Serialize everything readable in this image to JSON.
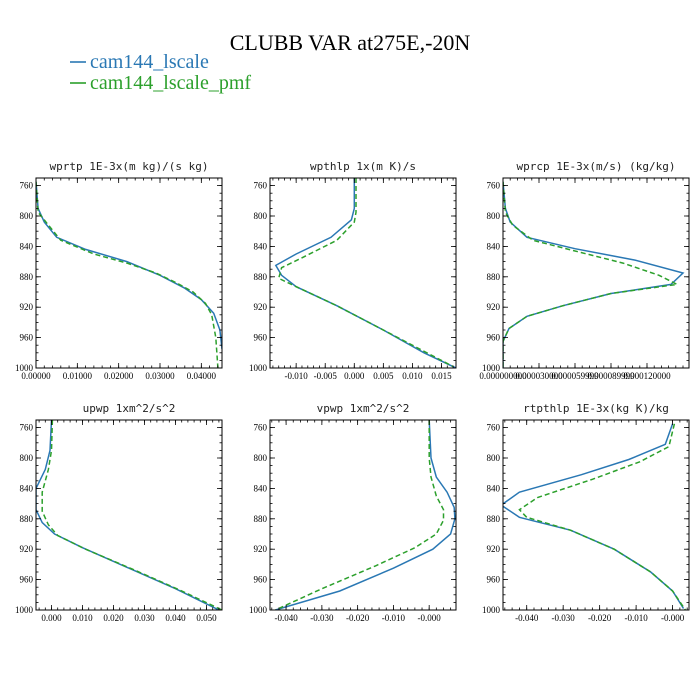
{
  "title": "CLUBB VAR at275E,-20N",
  "colors": {
    "series1": "#2a78b4",
    "series2": "#2ca02c"
  },
  "legend": [
    {
      "name": "cam144_lscale",
      "color": "#2a78b4",
      "dash": "solid"
    },
    {
      "name": "cam144_lscale_pmf",
      "color": "#2ca02c",
      "dash": "dashed"
    }
  ],
  "chart_data": [
    {
      "type": "line",
      "title": "wprtp  1E-3x(m kg)/(s kg)",
      "xlim": [
        0,
        0.045
      ],
      "ylim": [
        1000,
        750
      ],
      "xticks": [
        "0.00000",
        "0.01000",
        "0.02000",
        "0.03000",
        "0.04000"
      ],
      "xtick_values": [
        0,
        0.01,
        0.02,
        0.03,
        0.04
      ],
      "yticks": [
        "760",
        "800",
        "840",
        "880",
        "920",
        "960",
        "1000"
      ],
      "ytick_values": [
        760,
        800,
        840,
        880,
        920,
        960,
        1000
      ],
      "series": [
        {
          "name": "cam144_lscale",
          "x": [
            0,
            0.0005,
            0.002,
            0.005,
            0.012,
            0.022,
            0.03,
            0.036,
            0.04,
            0.043,
            0.0445,
            0.045
          ],
          "y": [
            755,
            790,
            808,
            828,
            844,
            860,
            878,
            895,
            910,
            928,
            950,
            975
          ]
        },
        {
          "name": "cam144_lscale_pmf",
          "x": [
            0,
            0.0005,
            0.003,
            0.006,
            0.014,
            0.022,
            0.029,
            0.034,
            0.038,
            0.041,
            0.0425,
            0.0435,
            0.044
          ],
          "y": [
            755,
            795,
            812,
            832,
            850,
            862,
            875,
            888,
            900,
            915,
            930,
            960,
            1000
          ]
        }
      ]
    },
    {
      "type": "line",
      "title": "wpthlp  1x(m K)/s",
      "xlim": [
        -0.0145,
        0.0175
      ],
      "ylim": [
        1000,
        750
      ],
      "xticks": [
        "-0.010",
        "-0.005",
        "0.000",
        "0.005",
        "0.010",
        "0.015"
      ],
      "xtick_values": [
        -0.01,
        -0.005,
        0,
        0.005,
        0.01,
        0.015
      ],
      "yticks": [
        "760",
        "800",
        "840",
        "880",
        "920",
        "960",
        "1000"
      ],
      "ytick_values": [
        760,
        800,
        840,
        880,
        920,
        960,
        1000
      ],
      "series": [
        {
          "name": "cam144_lscale",
          "x": [
            0,
            0,
            -0.0005,
            -0.004,
            -0.01,
            -0.0135,
            -0.0125,
            -0.01,
            -0.003,
            0.005,
            0.012,
            0.0175
          ],
          "y": [
            750,
            790,
            805,
            828,
            850,
            865,
            878,
            893,
            918,
            950,
            980,
            1000
          ]
        },
        {
          "name": "cam144_lscale_pmf",
          "x": [
            0.0003,
            0.0003,
            0,
            -0.003,
            -0.009,
            -0.0125,
            -0.013,
            -0.01,
            -0.003,
            0.005,
            0.012,
            0.017
          ],
          "y": [
            750,
            795,
            808,
            832,
            855,
            868,
            882,
            893,
            918,
            950,
            978,
            998
          ]
        }
      ]
    },
    {
      "type": "line",
      "title": "wprcp  1E-3x(m/s) (kg/kg)",
      "xlim": [
        0,
        0.000155
      ],
      "ylim": [
        1000,
        750
      ],
      "xticks": [
        "0.000000000",
        "0.000030000",
        "0.000059999",
        "0.000089999",
        "0.000120000"
      ],
      "xtick_values": [
        0,
        3e-05,
        6e-05,
        9e-05,
        0.00012
      ],
      "yticks": [
        "760",
        "800",
        "840",
        "880",
        "920",
        "960",
        "1000"
      ],
      "ytick_values": [
        760,
        800,
        840,
        880,
        920,
        960,
        1000
      ],
      "series": [
        {
          "name": "cam144_lscale",
          "x": [
            0,
            2e-06,
            6e-06,
            2e-05,
            6e-05,
            0.00011,
            0.00015,
            0.00014,
            9e-05,
            5e-05,
            2e-05,
            5e-06,
            0,
            0
          ],
          "y": [
            755,
            790,
            808,
            828,
            843,
            858,
            875,
            890,
            902,
            918,
            932,
            948,
            965,
            1000
          ]
        },
        {
          "name": "cam144_lscale_pmf",
          "x": [
            0,
            2e-06,
            8e-06,
            2.5e-05,
            6.5e-05,
            0.0001,
            0.00013,
            0.000145,
            9e-05,
            5e-05,
            2e-05,
            5e-06,
            0,
            0
          ],
          "y": [
            755,
            795,
            812,
            832,
            848,
            862,
            878,
            890,
            902,
            918,
            932,
            948,
            965,
            1000
          ]
        }
      ]
    },
    {
      "type": "line",
      "title": "upwp  1xm^2/s^2",
      "xlim": [
        -0.005,
        0.055
      ],
      "ylim": [
        1000,
        750
      ],
      "xticks": [
        "0.000",
        "0.010",
        "0.020",
        "0.030",
        "0.040",
        "0.050"
      ],
      "xtick_values": [
        0,
        0.01,
        0.02,
        0.03,
        0.04,
        0.05
      ],
      "yticks": [
        "760",
        "800",
        "840",
        "880",
        "920",
        "960",
        "1000"
      ],
      "ytick_values": [
        760,
        800,
        840,
        880,
        920,
        960,
        1000
      ],
      "series": [
        {
          "name": "cam144_lscale",
          "x": [
            0.0,
            -0.0005,
            -0.002,
            -0.005,
            -0.005,
            -0.003,
            0.001,
            0.01,
            0.025,
            0.04,
            0.054
          ],
          "y": [
            750,
            790,
            815,
            840,
            868,
            885,
            900,
            918,
            945,
            972,
            1000
          ]
        },
        {
          "name": "cam144_lscale_pmf",
          "x": [
            0.0003,
            0.0,
            -0.001,
            -0.003,
            -0.003,
            -0.001,
            0.002,
            0.011,
            0.026,
            0.041,
            0.055
          ],
          "y": [
            750,
            790,
            815,
            845,
            870,
            888,
            902,
            920,
            946,
            973,
            1000
          ]
        }
      ]
    },
    {
      "type": "line",
      "title": "vpwp  1xm^2/s^2",
      "xlim": [
        -0.0445,
        0.0075
      ],
      "ylim": [
        1000,
        750
      ],
      "xticks": [
        "-0.040",
        "-0.030",
        "-0.020",
        "-0.010",
        "-0.000"
      ],
      "xtick_values": [
        -0.04,
        -0.03,
        -0.02,
        -0.01,
        0
      ],
      "yticks": [
        "760",
        "800",
        "840",
        "880",
        "920",
        "960",
        "1000"
      ],
      "ytick_values": [
        760,
        800,
        840,
        880,
        920,
        960,
        1000
      ],
      "series": [
        {
          "name": "cam144_lscale",
          "x": [
            0,
            0.0005,
            0.002,
            0.005,
            0.007,
            0.0072,
            0.006,
            0.001,
            -0.01,
            -0.025,
            -0.043
          ],
          "y": [
            750,
            800,
            825,
            845,
            865,
            880,
            900,
            920,
            945,
            975,
            1000
          ]
        },
        {
          "name": "cam144_lscale_pmf",
          "x": [
            0,
            0,
            0.0005,
            0.002,
            0.004,
            0.004,
            0.002,
            -0.004,
            -0.015,
            -0.03,
            -0.043
          ],
          "y": [
            750,
            800,
            825,
            850,
            868,
            882,
            900,
            918,
            942,
            972,
            1000
          ]
        }
      ]
    },
    {
      "type": "line",
      "title": "rtpthlp  1E-3x(kg K)/kg",
      "xlim": [
        -0.0465,
        0.0045
      ],
      "ylim": [
        1000,
        750
      ],
      "xticks": [
        "-0.040",
        "-0.030",
        "-0.020",
        "-0.010",
        "-0.000"
      ],
      "xtick_values": [
        -0.04,
        -0.03,
        -0.02,
        -0.01,
        0
      ],
      "yticks": [
        "760",
        "800",
        "840",
        "880",
        "920",
        "960",
        "1000"
      ],
      "ytick_values": [
        760,
        800,
        840,
        880,
        920,
        960,
        1000
      ],
      "series": [
        {
          "name": "cam144_lscale",
          "x": [
            0,
            -0.002,
            -0.012,
            -0.025,
            -0.042,
            -0.047,
            -0.042,
            -0.028,
            -0.016,
            -0.006,
            0,
            0.003
          ],
          "y": [
            755,
            782,
            802,
            822,
            845,
            862,
            878,
            895,
            920,
            950,
            975,
            998
          ]
        },
        {
          "name": "cam144_lscale_pmf",
          "x": [
            0.0005,
            -0.001,
            -0.009,
            -0.022,
            -0.037,
            -0.042,
            -0.04,
            -0.028,
            -0.016,
            -0.006,
            0,
            0.0035
          ],
          "y": [
            755,
            785,
            805,
            828,
            852,
            868,
            878,
            895,
            920,
            950,
            975,
            1000
          ]
        }
      ]
    }
  ]
}
